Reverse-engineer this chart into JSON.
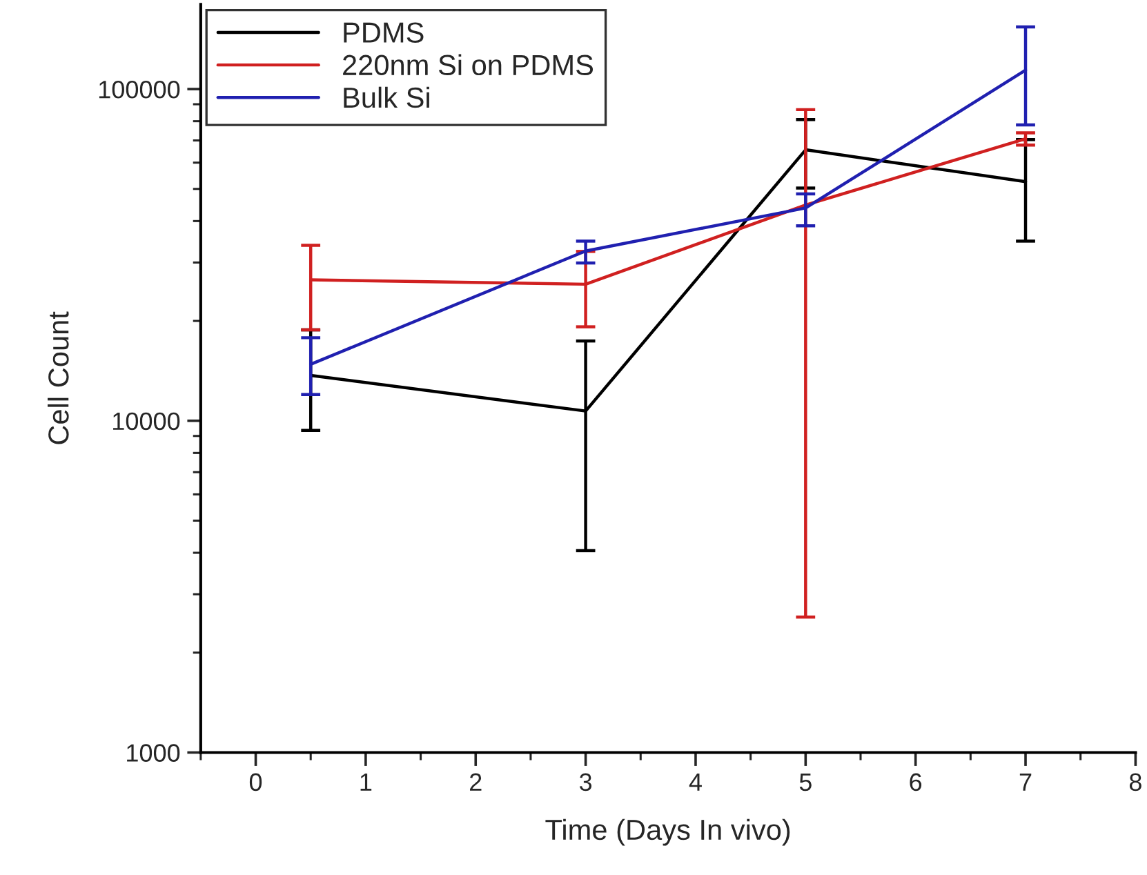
{
  "chart_data": {
    "type": "line",
    "xlabel": "Time (Days In vivo)",
    "ylabel": "Cell Count",
    "log": "y",
    "xlim": [
      -0.5,
      8
    ],
    "xticks": [
      0,
      1,
      2,
      3,
      4,
      5,
      6,
      7,
      8
    ],
    "ylim": [
      1000,
      180000
    ],
    "yticks": [
      1000,
      10000,
      100000
    ],
    "x": [
      0.5,
      3,
      5,
      7
    ],
    "legend": "top left",
    "grid": false,
    "marker": "none",
    "line_style": "solid",
    "series": [
      {
        "name": "PDMS",
        "color": "#000000",
        "values": [
          13700,
          10700,
          65600,
          52600
        ],
        "errors": [
          [
            9350,
            18800
          ],
          [
            4060,
            17400
          ],
          [
            50300,
            80900
          ],
          [
            34800,
            70400
          ]
        ]
      },
      {
        "name": "220nm Si on PDMS",
        "color": "#d02020",
        "values": [
          26600,
          25800,
          44700,
          70800
        ],
        "errors": [
          [
            18800,
            33800
          ],
          [
            19200,
            32400
          ],
          [
            2560,
            86700
          ],
          [
            67800,
            73800
          ]
        ]
      },
      {
        "name": "Bulk Si",
        "color": "#2020b0",
        "values": [
          14800,
          32500,
          43800,
          114000
        ],
        "errors": [
          [
            12000,
            17800
          ],
          [
            29900,
            34800
          ],
          [
            38700,
            48300
          ],
          [
            78000,
            154000
          ]
        ]
      }
    ]
  }
}
